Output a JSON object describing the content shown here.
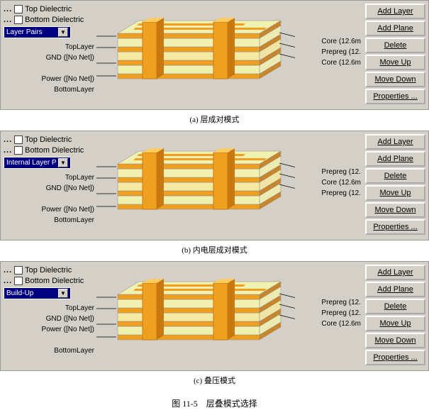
{
  "figure_title": "图 11-5　层叠模式选择",
  "common": {
    "top_dielectric": "Top Dielectric",
    "bottom_dielectric": "Bottom Dielectric",
    "buttons": {
      "add_layer": "Add Layer",
      "add_plane": "Add Plane",
      "delete": "Delete",
      "move_up": "Move Up",
      "move_down": "Move Down",
      "properties": "Properties ..."
    },
    "colors": {
      "copper": "#f0a020",
      "copper_dark": "#c87810",
      "prepreg": "#f0f0b0",
      "prepreg_dark": "#d0d080",
      "core": "#f5e8a0",
      "core_dark": "#d8c870",
      "panel_bg": "#d4d0c8",
      "dropdown_bg": "#000080"
    }
  },
  "panels": [
    {
      "dropdown": "Layer Pairs",
      "caption": "(a) 层成对模式",
      "layers": [
        "TopLayer",
        "GND ([No Net])",
        "Power ([No Net])",
        "BottomLayer"
      ],
      "layer_gap_after": 1,
      "materials": [
        "Core (12.6m",
        "Prepreg (12.",
        "Core (12.6m"
      ]
    },
    {
      "dropdown": "Internal Layer P",
      "caption": "(b) 内电层成对模式",
      "layers": [
        "TopLayer",
        "GND ([No Net])",
        "Power ([No Net])",
        "BottomLayer"
      ],
      "layer_gap_after": 1,
      "materials": [
        "Prepreg (12.",
        "Core (12.6m",
        "Prepreg (12."
      ]
    },
    {
      "dropdown": "Build-Up",
      "caption": "(c) 叠压模式",
      "layers": [
        "TopLayer",
        "GND ([No Net])",
        "Power ([No Net])",
        "BottomLayer"
      ],
      "layer_gap_after": 2,
      "materials": [
        "Prepreg (12.",
        "Prepreg (12.",
        "Core (12.6m"
      ]
    }
  ]
}
